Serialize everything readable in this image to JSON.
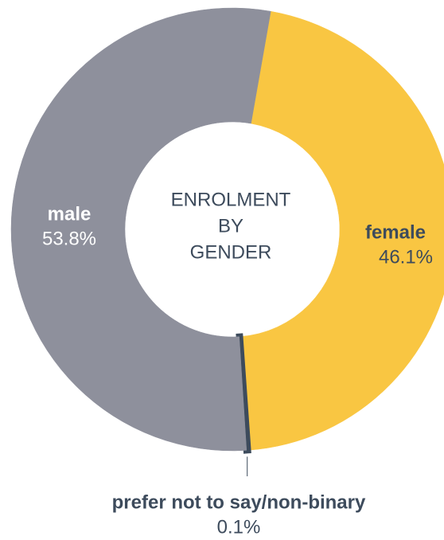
{
  "chart_data": {
    "type": "donut",
    "title": [
      "ENROLMENT",
      "BY",
      "GENDER"
    ],
    "categories": [
      "female",
      "prefer not to say/non-binary",
      "male"
    ],
    "values": [
      46.1,
      0.1,
      53.8
    ],
    "value_labels": [
      "46.1%",
      "0.1%",
      "53.8%"
    ],
    "colors": [
      "#f9c642",
      "#3d4b5c",
      "#8e909c"
    ]
  }
}
